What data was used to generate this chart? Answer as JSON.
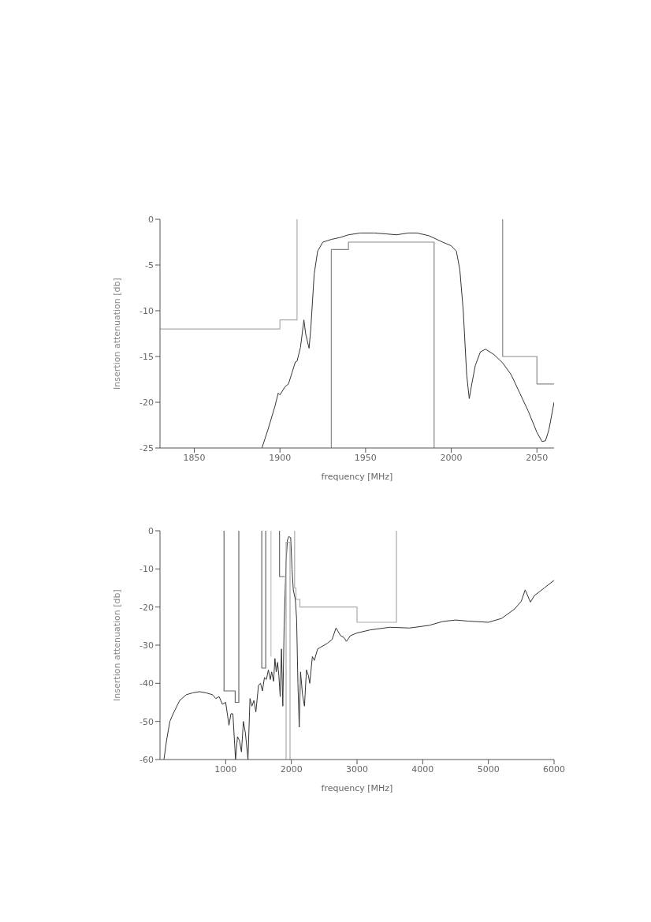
{
  "chart_data": [
    {
      "type": "line",
      "xlabel": "frequency [MHz]",
      "ylabel": "Insertion attenuation [db]",
      "xlim": [
        1830,
        2060
      ],
      "ylim": [
        -25,
        0
      ],
      "xticks": [
        1850,
        1900,
        1950,
        2000,
        2050
      ],
      "yticks": [
        0,
        -5,
        -10,
        -15,
        -20,
        -25
      ],
      "grid": false,
      "legend": false,
      "marker": "none",
      "line_style": "solid",
      "series": [
        {
          "color": "#333333",
          "x": [
            1889.5,
            1893,
            1897,
            1899,
            1900,
            1903,
            1905,
            1907,
            1909,
            1910,
            1912,
            1914,
            1915,
            1917,
            1918,
            1920,
            1922,
            1925,
            1930,
            1935,
            1940,
            1947,
            1955,
            1962,
            1968,
            1975,
            1980,
            1987,
            1995,
            2000,
            2003,
            2005,
            2007,
            2009,
            2010.5,
            2012,
            2014,
            2017,
            2020,
            2025,
            2030,
            2035,
            2040,
            2045,
            2050,
            2053,
            2055,
            2057,
            2060
          ],
          "values": [
            -25,
            -23,
            -20.5,
            -19,
            -19.2,
            -18.3,
            -18,
            -16.8,
            -15.6,
            -15.5,
            -14,
            -11,
            -12.5,
            -14.1,
            -12,
            -6,
            -3.5,
            -2.5,
            -2.2,
            -2,
            -1.7,
            -1.5,
            -1.5,
            -1.6,
            -1.7,
            -1.5,
            -1.5,
            -1.8,
            -2.5,
            -2.9,
            -3.5,
            -5.5,
            -10,
            -17,
            -19.6,
            -18,
            -16,
            -14.5,
            -14.2,
            -14.8,
            -15.7,
            -17,
            -19,
            -21,
            -23.3,
            -24.3,
            -24.2,
            -23,
            -20
          ]
        },
        {
          "color": "#aaaaaa",
          "x": [
            1830,
            1900,
            1900,
            1910,
            1910
          ],
          "values": [
            -12,
            -12,
            -11,
            -11,
            0
          ]
        },
        {
          "color": "#888888",
          "x": [
            1930,
            1930,
            1940,
            1940,
            1990,
            1990
          ],
          "values": [
            -25,
            -3.3,
            -3.3,
            -2.5,
            -2.5,
            -25
          ]
        },
        {
          "color": "#888888",
          "x": [
            2030,
            2030,
            2050,
            2050,
            2060
          ],
          "values": [
            0,
            -15,
            -15,
            -18,
            -18
          ]
        }
      ]
    },
    {
      "type": "line",
      "xlabel": "frequency [MHz]",
      "ylabel": "Insertion attenuation [db]",
      "xlim": [
        0,
        6000
      ],
      "ylim": [
        -60,
        0
      ],
      "xticks": [
        1000,
        2000,
        3000,
        4000,
        5000,
        6000
      ],
      "yticks": [
        0,
        -10,
        -20,
        -30,
        -40,
        -50,
        -60
      ],
      "grid": false,
      "legend": false,
      "marker": "none",
      "line_style": "solid",
      "series": [
        {
          "color": "#333333",
          "x": [
            60,
            100,
            150,
            200,
            300,
            400,
            500,
            600,
            700,
            800,
            850,
            900,
            950,
            1000,
            1050,
            1080,
            1110,
            1150,
            1180,
            1210,
            1240,
            1270,
            1300,
            1340,
            1370,
            1400,
            1430,
            1460,
            1500,
            1530,
            1560,
            1590,
            1620,
            1650,
            1680,
            1700,
            1730,
            1750,
            1770,
            1790,
            1810,
            1830,
            1850,
            1870,
            1890,
            1920,
            1940,
            1960,
            1990,
            2010,
            2030,
            2060,
            2080,
            2100,
            2120,
            2140,
            2170,
            2200,
            2230,
            2260,
            2280,
            2320,
            2350,
            2400,
            2450,
            2550,
            2620,
            2680,
            2750,
            2800,
            2840,
            2900,
            3000,
            3200,
            3500,
            3800,
            4100,
            4300,
            4500,
            4700,
            5000,
            5200,
            5400,
            5500,
            5560,
            5640,
            5700,
            5850,
            6000
          ],
          "values": [
            -60,
            -55,
            -50,
            -48,
            -44.5,
            -43,
            -42.5,
            -42.2,
            -42.5,
            -43,
            -44,
            -43.5,
            -45.5,
            -45,
            -51,
            -48,
            -48,
            -60,
            -54,
            -55,
            -58,
            -50,
            -53,
            -60,
            -44,
            -46,
            -44.5,
            -47.5,
            -40.5,
            -40,
            -42,
            -38.5,
            -39,
            -36.5,
            -39,
            -37,
            -39.5,
            -33.5,
            -37,
            -34.5,
            -38,
            -43.5,
            -31,
            -46,
            -25,
            -8,
            -2.5,
            -1.5,
            -1.8,
            -10,
            -15.5,
            -18,
            -23,
            -40,
            -51.5,
            -37,
            -43,
            -46,
            -36.5,
            -38,
            -40,
            -33,
            -34,
            -31,
            -30.5,
            -29.5,
            -28.5,
            -25.5,
            -27.5,
            -28,
            -29,
            -27.5,
            -26.8,
            -26,
            -25.3,
            -25.5,
            -24.8,
            -23.8,
            -23.4,
            -23.7,
            -24,
            -23,
            -20.5,
            -18.5,
            -15.5,
            -18.7,
            -17,
            -15,
            -13
          ]
        },
        {
          "color": "#666666",
          "x": [
            975,
            975,
            1145,
            1145,
            1200,
            1200
          ],
          "values": [
            0,
            -42,
            -42,
            -45,
            -45,
            0
          ]
        },
        {
          "color": "#666666",
          "x": [
            1550,
            1550,
            1610,
            1610
          ],
          "values": [
            0,
            -36,
            -36,
            0
          ]
        },
        {
          "color": "#bbbbbb",
          "x": [
            1690,
            1690
          ],
          "values": [
            0,
            -33
          ]
        },
        {
          "color": "#666666",
          "x": [
            1820,
            1820,
            1900
          ],
          "values": [
            0,
            -12,
            -12
          ]
        },
        {
          "color": "#aaaaaa",
          "x": [
            1920,
            1920,
            1980,
            1980
          ],
          "values": [
            -60,
            -3,
            -3,
            -60
          ]
        },
        {
          "color": "#aaaaaa",
          "x": [
            2050,
            2050,
            2070,
            2070,
            2130,
            2130,
            3000,
            3000,
            3600,
            3600
          ],
          "values": [
            0,
            -15,
            -15,
            -18,
            -18,
            -20,
            -20,
            -24,
            -24,
            0
          ]
        }
      ]
    }
  ]
}
